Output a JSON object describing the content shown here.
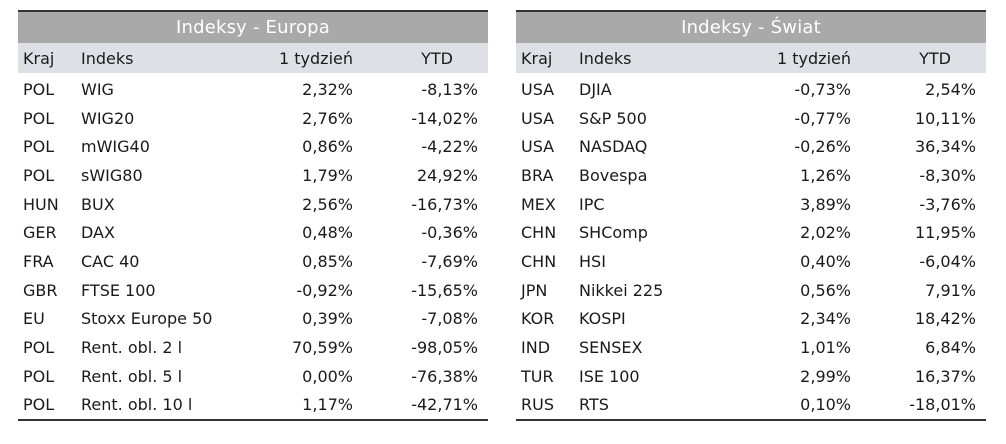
{
  "tables": [
    {
      "title": "Indeksy - Europa",
      "headers": {
        "country": "Kraj",
        "index": "Indeks",
        "week": "1 tydzień",
        "ytd": "YTD"
      },
      "rows": [
        {
          "country": "POL",
          "index": "WIG",
          "week": "2,32%",
          "ytd": "-8,13%"
        },
        {
          "country": "POL",
          "index": "WIG20",
          "week": "2,76%",
          "ytd": "-14,02%"
        },
        {
          "country": "POL",
          "index": "mWIG40",
          "week": "0,86%",
          "ytd": "-4,22%"
        },
        {
          "country": "POL",
          "index": "sWIG80",
          "week": "1,79%",
          "ytd": "24,92%"
        },
        {
          "country": "HUN",
          "index": "BUX",
          "week": "2,56%",
          "ytd": "-16,73%"
        },
        {
          "country": "GER",
          "index": "DAX",
          "week": "0,48%",
          "ytd": "-0,36%"
        },
        {
          "country": "FRA",
          "index": "CAC 40",
          "week": "0,85%",
          "ytd": "-7,69%"
        },
        {
          "country": "GBR",
          "index": "FTSE 100",
          "week": "-0,92%",
          "ytd": "-15,65%"
        },
        {
          "country": "EU",
          "index": "Stoxx Europe 50",
          "week": "0,39%",
          "ytd": "-7,08%"
        },
        {
          "country": "POL",
          "index": "Rent. obl. 2 l",
          "week": "70,59%",
          "ytd": "-98,05%"
        },
        {
          "country": "POL",
          "index": "Rent. obl. 5 l",
          "week": "0,00%",
          "ytd": "-76,38%"
        },
        {
          "country": "POL",
          "index": "Rent. obl. 10 l",
          "week": "1,17%",
          "ytd": "-42,71%"
        }
      ]
    },
    {
      "title": "Indeksy - Świat",
      "headers": {
        "country": "Kraj",
        "index": "Indeks",
        "week": "1 tydzień",
        "ytd": "YTD"
      },
      "rows": [
        {
          "country": "USA",
          "index": "DJIA",
          "week": "-0,73%",
          "ytd": "2,54%"
        },
        {
          "country": "USA",
          "index": "S&P 500",
          "week": "-0,77%",
          "ytd": "10,11%"
        },
        {
          "country": "USA",
          "index": "NASDAQ",
          "week": "-0,26%",
          "ytd": "36,34%"
        },
        {
          "country": "BRA",
          "index": "Bovespa",
          "week": "1,26%",
          "ytd": "-8,30%"
        },
        {
          "country": "MEX",
          "index": "IPC",
          "week": "3,89%",
          "ytd": "-3,76%"
        },
        {
          "country": "CHN",
          "index": "SHComp",
          "week": "2,02%",
          "ytd": "11,95%"
        },
        {
          "country": "CHN",
          "index": "HSI",
          "week": "0,40%",
          "ytd": "-6,04%"
        },
        {
          "country": "JPN",
          "index": "Nikkei 225",
          "week": "0,56%",
          "ytd": "7,91%"
        },
        {
          "country": "KOR",
          "index": "KOSPI",
          "week": "2,34%",
          "ytd": "18,42%"
        },
        {
          "country": "IND",
          "index": "SENSEX",
          "week": "1,01%",
          "ytd": "6,84%"
        },
        {
          "country": "TUR",
          "index": "ISE 100",
          "week": "2,99%",
          "ytd": "16,37%"
        },
        {
          "country": "RUS",
          "index": "RTS",
          "week": "0,10%",
          "ytd": "-18,01%"
        }
      ]
    }
  ]
}
